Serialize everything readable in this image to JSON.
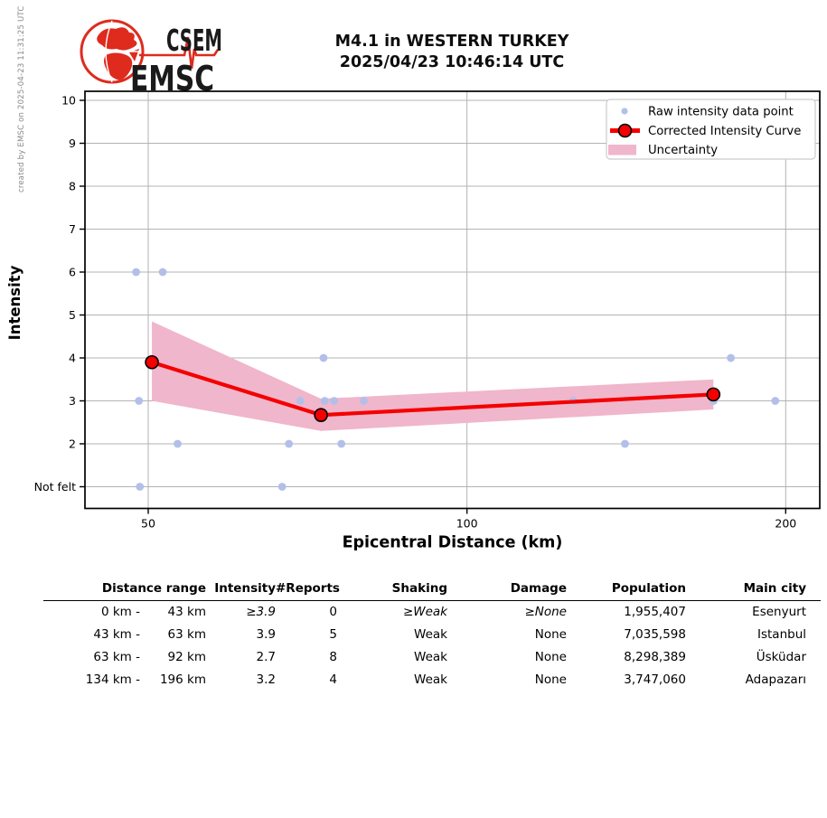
{
  "credit": "created by EMSC on 2025-04-23 11:31:25 UTC",
  "logo": {
    "org_top": "CSEM",
    "org_bottom": "EMSC"
  },
  "title": {
    "line1": "M4.1 in WESTERN TURKEY",
    "line2": "2025/04/23 10:46:14 UTC"
  },
  "chart_data": {
    "type": "scatter",
    "x_scale": "log",
    "xlabel": "Epicentral Distance (km)",
    "ylabel": "Intensity",
    "xlim": [
      43.6,
      215
    ],
    "ylim": [
      0.5,
      10.2
    ],
    "grid": true,
    "xticks": [
      "50",
      "100",
      "200"
    ],
    "yticks": [
      {
        "value": 10,
        "label": "10"
      },
      {
        "value": 9,
        "label": "9"
      },
      {
        "value": 8,
        "label": "8"
      },
      {
        "value": 7,
        "label": "7"
      },
      {
        "value": 6,
        "label": "6"
      },
      {
        "value": 5,
        "label": "5"
      },
      {
        "value": 4,
        "label": "4"
      },
      {
        "value": 3,
        "label": "3"
      },
      {
        "value": 2,
        "label": "2"
      },
      {
        "value": 1,
        "label": "Not felt"
      }
    ],
    "legend": {
      "position": "upper right",
      "items": [
        {
          "label": "Raw intensity data point",
          "type": "dot"
        },
        {
          "label": "Corrected Intensity Curve",
          "type": "line-marker"
        },
        {
          "label": "Uncertainty",
          "type": "patch"
        }
      ]
    },
    "raw_points": [
      [
        48.7,
        6
      ],
      [
        51.6,
        6
      ],
      [
        49.0,
        3
      ],
      [
        53.3,
        2
      ],
      [
        49.1,
        1
      ],
      [
        66.9,
        1
      ],
      [
        67.9,
        2
      ],
      [
        69.6,
        3
      ],
      [
        73.2,
        4
      ],
      [
        73.4,
        3
      ],
      [
        74.9,
        3
      ],
      [
        76.1,
        2
      ],
      [
        79.9,
        3
      ],
      [
        126.0,
        3
      ],
      [
        141.0,
        2
      ],
      [
        171.0,
        3
      ],
      [
        177.5,
        4
      ],
      [
        195.5,
        3
      ]
    ],
    "corrected_curve": [
      [
        50.4,
        3.9
      ],
      [
        72.8,
        2.67
      ],
      [
        170.9,
        3.15
      ]
    ],
    "uncertainty_band": [
      {
        "x": 50.4,
        "top": 4.85,
        "bottom": 3.0
      },
      {
        "x": 72.8,
        "top": 3.05,
        "bottom": 2.3
      },
      {
        "x": 170.9,
        "top": 3.5,
        "bottom": 2.8
      }
    ],
    "colors": {
      "raw_point": "#b2c0e9",
      "curve": "#f40000",
      "curve_marker_edge": "#000000",
      "band": "#f0b6cb",
      "grid": "#b3b3b3"
    }
  },
  "table": {
    "headers": {
      "distance": "Distance range",
      "intensity": "Intensity",
      "reports": "#Reports",
      "shaking": "Shaking",
      "damage": "Damage",
      "population": "Population",
      "city": "Main city"
    },
    "rows": [
      {
        "range_from": "0 km -",
        "range_to": "43 km",
        "intensity": "≥3.9",
        "reports": "0",
        "shaking": "≥Weak",
        "damage": "≥None",
        "population": "1,955,407",
        "city": "Esenyurt",
        "estimated": true
      },
      {
        "range_from": "43 km -",
        "range_to": "63 km",
        "intensity": "3.9",
        "reports": "5",
        "shaking": "Weak",
        "damage": "None",
        "population": "7,035,598",
        "city": "Istanbul",
        "estimated": false
      },
      {
        "range_from": "63 km -",
        "range_to": "92 km",
        "intensity": "2.7",
        "reports": "8",
        "shaking": "Weak",
        "damage": "None",
        "population": "8,298,389",
        "city": "Üsküdar",
        "estimated": false
      },
      {
        "range_from": "134 km -",
        "range_to": "196 km",
        "intensity": "3.2",
        "reports": "4",
        "shaking": "Weak",
        "damage": "None",
        "population": "3,747,060",
        "city": "Adapazarı",
        "estimated": false
      }
    ]
  }
}
